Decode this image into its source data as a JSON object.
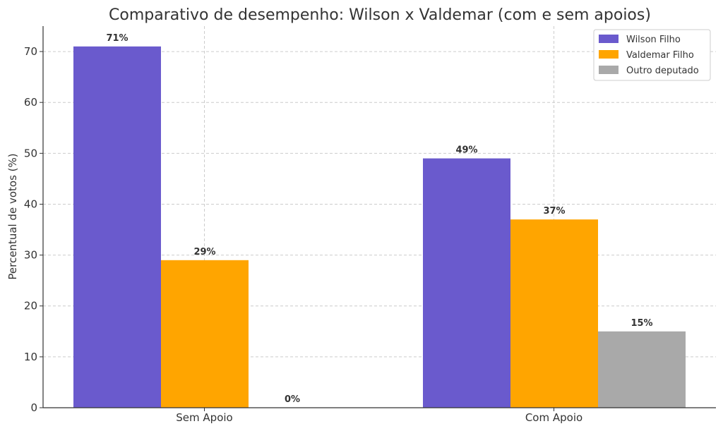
{
  "chart_data": {
    "type": "bar",
    "title": "Comparativo de desempenho: Wilson x Valdemar (com e sem apoios)",
    "xlabel": "",
    "ylabel": "Percentual de votos (%)",
    "categories": [
      "Sem Apoio",
      "Com Apoio"
    ],
    "ylim": [
      0,
      75
    ],
    "yticks": [
      0,
      10,
      20,
      30,
      40,
      50,
      60,
      70
    ],
    "grid": true,
    "legend_position": "top-right",
    "series": [
      {
        "name": "Wilson Filho",
        "color": "#6a5acd",
        "values": [
          71,
          49
        ],
        "labels": [
          "71%",
          "49%"
        ]
      },
      {
        "name": "Valdemar Filho",
        "color": "#ffa500",
        "values": [
          29,
          37
        ],
        "labels": [
          "29%",
          "37%"
        ]
      },
      {
        "name": "Outro deputado",
        "color": "#a9a9a9",
        "values": [
          0,
          15
        ],
        "labels": [
          "0%",
          "15%"
        ]
      }
    ]
  }
}
